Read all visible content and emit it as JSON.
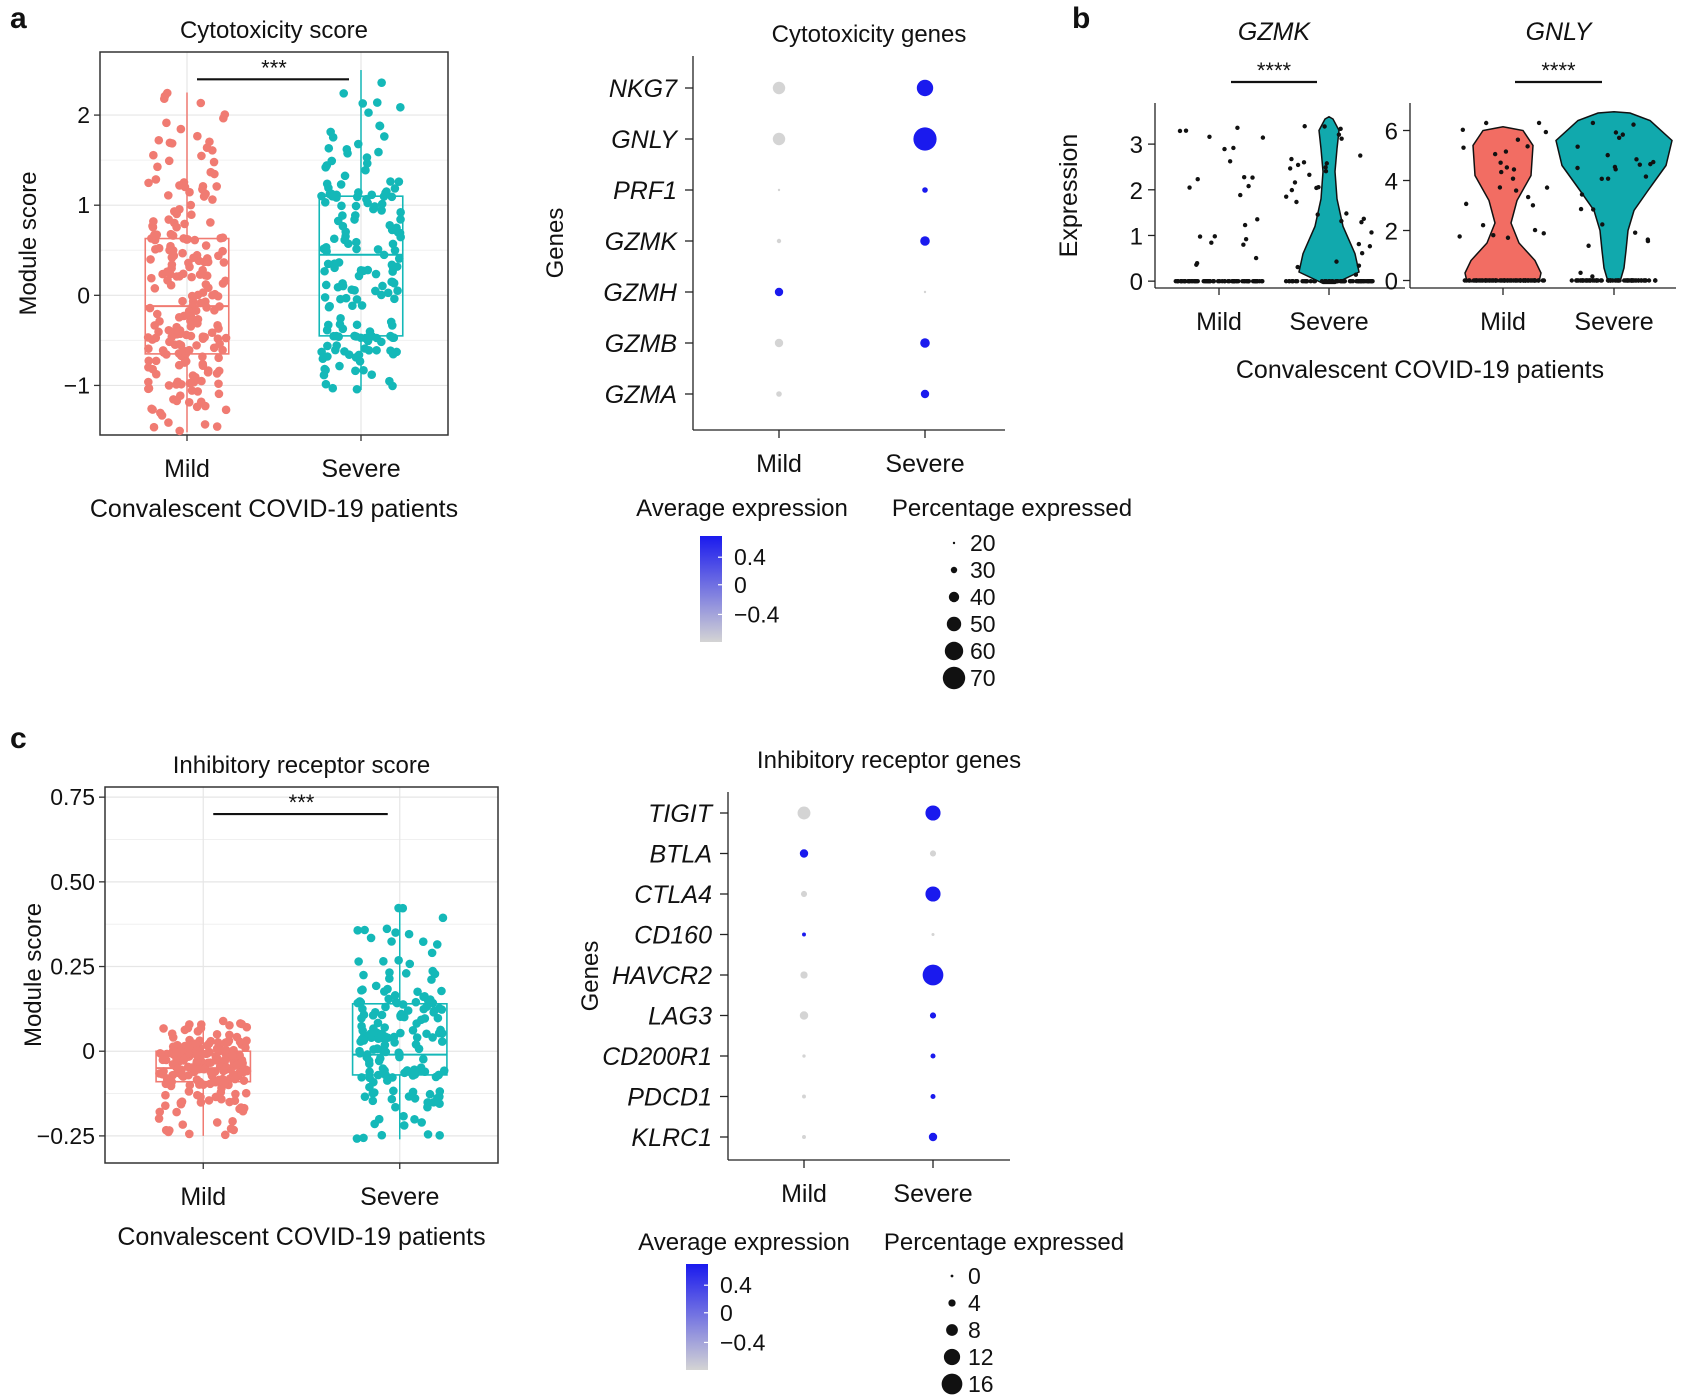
{
  "figure": {
    "panel_labels": [
      "a",
      "b",
      "c"
    ],
    "colors": {
      "mild": "#f07b72",
      "mild_fill": "#f26d63",
      "severe": "#14b8b8",
      "severe_fill": "#11a9ad",
      "dot_high": "#1a1aee",
      "dot_low": "#d4d4d4",
      "panel_border": "#333333",
      "grid": "#e6e6e6"
    }
  },
  "chart_data": [
    {
      "id": "cytotoxicity_box",
      "type": "box",
      "title": "Cytotoxicity score",
      "xlabel": "Convalescent COVID-19 patients",
      "ylabel": "Module score",
      "categories": [
        "Mild",
        "Severe"
      ],
      "yticks": [
        -1,
        0,
        1,
        2
      ],
      "ytick_labels": [
        "−1",
        "0",
        "1",
        "2"
      ],
      "ylim": [
        -1.55,
        2.7
      ],
      "boxes": [
        {
          "name": "Mild",
          "q1": -0.65,
          "median": -0.12,
          "q3": 0.63,
          "whisker_low": -1.52,
          "whisker_high": 2.25
        },
        {
          "name": "Severe",
          "q1": -0.45,
          "median": 0.45,
          "q3": 1.1,
          "whisker_low": -1.05,
          "whisker_high": 2.5
        }
      ],
      "significance": "***"
    },
    {
      "id": "cytotoxicity_dot",
      "type": "dot",
      "title": "Cytotoxicity genes",
      "ylabel": "Genes",
      "categories": [
        "Mild",
        "Severe"
      ],
      "genes": [
        "NKG7",
        "GNLY",
        "PRF1",
        "GZMK",
        "GZMH",
        "GZMB",
        "GZMA"
      ],
      "pct_expressed": {
        "Mild": [
          45,
          45,
          20,
          25,
          35,
          35,
          28
        ],
        "Severe": [
          55,
          72,
          28,
          38,
          20,
          38,
          35
        ]
      },
      "avg_expression": {
        "Mild": [
          -0.5,
          -0.5,
          -0.5,
          -0.5,
          0.5,
          -0.5,
          -0.5
        ],
        "Severe": [
          0.5,
          0.5,
          0.5,
          0.5,
          -0.5,
          0.5,
          0.5
        ]
      },
      "legend_color_title": "Average expression",
      "legend_color_ticks": [
        "0.4",
        "0",
        "−0.4"
      ],
      "legend_size_title": "Percentage expressed",
      "legend_size_values": [
        "20",
        "30",
        "40",
        "50",
        "60",
        "70"
      ]
    },
    {
      "id": "violin_gzmk",
      "type": "violin",
      "title": "GZMK",
      "ylabel": "Expression",
      "categories": [
        "Mild",
        "Severe"
      ],
      "yticks": [
        0,
        1,
        2,
        3
      ],
      "ylim": [
        -0.15,
        3.9
      ],
      "significance": "****"
    },
    {
      "id": "violin_gnly",
      "type": "violin",
      "title": "GNLY",
      "xlabel": "Convalescent COVID-19 patients",
      "categories": [
        "Mild",
        "Severe"
      ],
      "yticks": [
        0,
        2,
        4,
        6
      ],
      "ylim": [
        -0.3,
        7.1
      ],
      "significance": "****"
    },
    {
      "id": "inhibitory_box",
      "type": "box",
      "title": "Inhibitory receptor score",
      "xlabel": "Convalescent COVID-19 patients",
      "ylabel": "Module score",
      "categories": [
        "Mild",
        "Severe"
      ],
      "yticks": [
        -0.25,
        0,
        0.25,
        0.5,
        0.75
      ],
      "ytick_labels": [
        "−0.25",
        "0",
        "0.25",
        "0.50",
        "0.75"
      ],
      "ylim": [
        -0.33,
        0.78
      ],
      "boxes": [
        {
          "name": "Mild",
          "q1": -0.09,
          "median": -0.05,
          "q3": 0.0,
          "whisker_low": -0.25,
          "whisker_high": 0.09
        },
        {
          "name": "Severe",
          "q1": -0.07,
          "median": -0.01,
          "q3": 0.14,
          "whisker_low": -0.26,
          "whisker_high": 0.43
        }
      ],
      "significance": "***"
    },
    {
      "id": "inhibitory_dot",
      "type": "dot",
      "title": "Inhibitory receptor genes",
      "ylabel": "Genes",
      "categories": [
        "Mild",
        "Severe"
      ],
      "genes": [
        "TIGIT",
        "BTLA",
        "CTLA4",
        "CD160",
        "HAVCR2",
        "LAG3",
        "CD200R1",
        "PDCD1",
        "KLRC1"
      ],
      "pct_expressed": {
        "Mild": [
          9,
          5,
          3,
          1,
          4,
          5,
          0.5,
          1,
          1
        ],
        "Severe": [
          11,
          3,
          11,
          0.2,
          16,
          3,
          2,
          2,
          5
        ]
      },
      "avg_expression": {
        "Mild": [
          -0.5,
          0.5,
          -0.5,
          0.5,
          -0.5,
          -0.5,
          -0.5,
          -0.5,
          -0.5
        ],
        "Severe": [
          0.5,
          -0.5,
          0.5,
          -0.5,
          0.5,
          0.5,
          0.5,
          0.5,
          0.5
        ]
      },
      "legend_color_title": "Average expression",
      "legend_color_ticks": [
        "0.4",
        "0",
        "−0.4"
      ],
      "legend_size_title": "Percentage expressed",
      "legend_size_values": [
        "0",
        "4",
        "8",
        "12",
        "16"
      ]
    }
  ]
}
